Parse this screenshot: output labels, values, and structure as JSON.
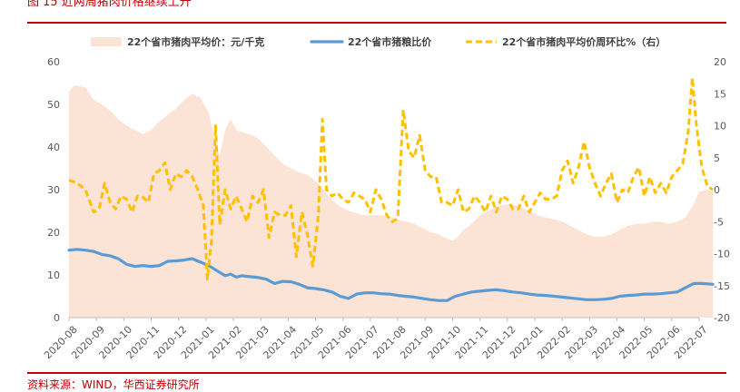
{
  "figure": {
    "title": "图 15   近两周猪肉价格继续上升",
    "source": "资料来源：WIND，华西证券研究所"
  },
  "chart_data": {
    "type": "line",
    "x_start": "2020-08",
    "x_end": "2022-07",
    "x_tick_labels": [
      "2020-08",
      "2020-09",
      "2020-10",
      "2020-11",
      "2020-12",
      "2021-01",
      "2021-02",
      "2021-03",
      "2021-04",
      "2021-05",
      "2021-06",
      "2021-07",
      "2021-08",
      "2021-09",
      "2021-10",
      "2021-11",
      "2021-12",
      "2022-01",
      "2022-02",
      "2022-03",
      "2022-04",
      "2022-05",
      "2022-06",
      "2022-07"
    ],
    "y_left": {
      "min": 0,
      "max": 60,
      "ticks": [
        0,
        10,
        20,
        30,
        40,
        50,
        60
      ]
    },
    "y_right": {
      "min": -20,
      "max": 20,
      "ticks": [
        -20,
        -15,
        -10,
        -5,
        0,
        5,
        10,
        15,
        20
      ]
    },
    "legend_position": "top",
    "grid": false,
    "series": [
      {
        "name": "22个省市猪肉平均价：元/千克",
        "kind": "area",
        "axis": "left",
        "color": "#fbe3d6",
        "points": [
          [
            0,
            53
          ],
          [
            0.2,
            54.5
          ],
          [
            0.6,
            54
          ],
          [
            0.9,
            51
          ],
          [
            1.2,
            50
          ],
          [
            1.5,
            48.5
          ],
          [
            1.8,
            46.5
          ],
          [
            2.1,
            45
          ],
          [
            2.4,
            44
          ],
          [
            2.7,
            43
          ],
          [
            3.0,
            44
          ],
          [
            3.3,
            46
          ],
          [
            3.6,
            47.5
          ],
          [
            3.9,
            49
          ],
          [
            4.2,
            51
          ],
          [
            4.5,
            52.5
          ],
          [
            4.8,
            51.5
          ],
          [
            5.1,
            48
          ],
          [
            5.3,
            42
          ],
          [
            5.5,
            38
          ],
          [
            5.7,
            44
          ],
          [
            5.9,
            46.5
          ],
          [
            6.1,
            44
          ],
          [
            6.3,
            43.5
          ],
          [
            6.6,
            43
          ],
          [
            6.9,
            42
          ],
          [
            7.2,
            40
          ],
          [
            7.5,
            38
          ],
          [
            7.8,
            36
          ],
          [
            8.1,
            35
          ],
          [
            8.4,
            34
          ],
          [
            8.7,
            33.5
          ],
          [
            9.0,
            32
          ],
          [
            9.3,
            30
          ],
          [
            9.6,
            27.5
          ],
          [
            9.9,
            26
          ],
          [
            10.2,
            25
          ],
          [
            10.5,
            24.5
          ],
          [
            10.8,
            24
          ],
          [
            11.1,
            24
          ],
          [
            11.4,
            24
          ],
          [
            11.7,
            23.7
          ],
          [
            12.0,
            23
          ],
          [
            12.3,
            22.5
          ],
          [
            12.6,
            22
          ],
          [
            12.9,
            21
          ],
          [
            13.2,
            20
          ],
          [
            13.5,
            19.5
          ],
          [
            13.8,
            18.5
          ],
          [
            14.0,
            18
          ],
          [
            14.2,
            19
          ],
          [
            14.4,
            20.5
          ],
          [
            14.7,
            22
          ],
          [
            15.0,
            24
          ],
          [
            15.3,
            25
          ],
          [
            15.6,
            26
          ],
          [
            15.9,
            26.5
          ],
          [
            16.2,
            26.5
          ],
          [
            16.5,
            26
          ],
          [
            16.8,
            25
          ],
          [
            17.1,
            24
          ],
          [
            17.4,
            23.5
          ],
          [
            17.7,
            23
          ],
          [
            18.0,
            22.5
          ],
          [
            18.3,
            21.5
          ],
          [
            18.6,
            20.5
          ],
          [
            18.9,
            19.5
          ],
          [
            19.2,
            19
          ],
          [
            19.5,
            19
          ],
          [
            19.8,
            19.5
          ],
          [
            20.1,
            20.5
          ],
          [
            20.4,
            21.5
          ],
          [
            20.7,
            22
          ],
          [
            21.0,
            22
          ],
          [
            21.3,
            22.5
          ],
          [
            21.6,
            22.5
          ],
          [
            21.9,
            22
          ],
          [
            22.2,
            22.5
          ],
          [
            22.5,
            23.5
          ],
          [
            22.8,
            26.5
          ],
          [
            23.0,
            29.5
          ],
          [
            23.3,
            30
          ],
          [
            23.5,
            29.5
          ]
        ]
      },
      {
        "name": "22个省市猪粮比价",
        "kind": "line",
        "axis": "left",
        "color": "#5b9bd5",
        "dash": "solid",
        "points": [
          [
            0,
            15.8
          ],
          [
            0.3,
            16
          ],
          [
            0.6,
            15.8
          ],
          [
            0.9,
            15.5
          ],
          [
            1.2,
            14.8
          ],
          [
            1.5,
            14.5
          ],
          [
            1.8,
            13.8
          ],
          [
            2.1,
            12.5
          ],
          [
            2.4,
            12
          ],
          [
            2.7,
            12.2
          ],
          [
            3.0,
            12
          ],
          [
            3.3,
            12.2
          ],
          [
            3.6,
            13.2
          ],
          [
            3.9,
            13.3
          ],
          [
            4.2,
            13.5
          ],
          [
            4.5,
            13.8
          ],
          [
            4.8,
            13
          ],
          [
            5.1,
            12.2
          ],
          [
            5.4,
            11
          ],
          [
            5.7,
            9.8
          ],
          [
            5.9,
            10.2
          ],
          [
            6.1,
            9.5
          ],
          [
            6.3,
            9.8
          ],
          [
            6.6,
            9.6
          ],
          [
            6.9,
            9.4
          ],
          [
            7.2,
            9
          ],
          [
            7.5,
            8
          ],
          [
            7.8,
            8.5
          ],
          [
            8.1,
            8.4
          ],
          [
            8.4,
            7.8
          ],
          [
            8.7,
            7
          ],
          [
            9.0,
            6.8
          ],
          [
            9.3,
            6.5
          ],
          [
            9.6,
            6
          ],
          [
            9.9,
            5
          ],
          [
            10.2,
            4.5
          ],
          [
            10.5,
            5.5
          ],
          [
            10.8,
            5.8
          ],
          [
            11.1,
            5.8
          ],
          [
            11.4,
            5.6
          ],
          [
            11.7,
            5.5
          ],
          [
            12.0,
            5.2
          ],
          [
            12.3,
            5
          ],
          [
            12.6,
            4.8
          ],
          [
            12.9,
            4.5
          ],
          [
            13.2,
            4.2
          ],
          [
            13.5,
            4
          ],
          [
            13.8,
            4
          ],
          [
            14.1,
            5
          ],
          [
            14.4,
            5.5
          ],
          [
            14.7,
            6
          ],
          [
            15.0,
            6.2
          ],
          [
            15.3,
            6.4
          ],
          [
            15.6,
            6.5
          ],
          [
            15.9,
            6.3
          ],
          [
            16.2,
            6
          ],
          [
            16.5,
            5.8
          ],
          [
            16.8,
            5.5
          ],
          [
            17.1,
            5.3
          ],
          [
            17.4,
            5.2
          ],
          [
            17.7,
            5
          ],
          [
            18.0,
            4.8
          ],
          [
            18.3,
            4.6
          ],
          [
            18.6,
            4.4
          ],
          [
            18.9,
            4.2
          ],
          [
            19.2,
            4.2
          ],
          [
            19.5,
            4.3
          ],
          [
            19.8,
            4.5
          ],
          [
            20.1,
            5
          ],
          [
            20.4,
            5.2
          ],
          [
            20.7,
            5.3
          ],
          [
            21.0,
            5.5
          ],
          [
            21.3,
            5.5
          ],
          [
            21.6,
            5.6
          ],
          [
            21.9,
            5.8
          ],
          [
            22.2,
            6
          ],
          [
            22.5,
            7
          ],
          [
            22.8,
            8
          ],
          [
            23.1,
            8
          ],
          [
            23.5,
            7.8
          ]
        ]
      },
      {
        "name": "22个省市猪肉平均价周环比%（右）",
        "kind": "line",
        "axis": "right",
        "color": "#ffc000",
        "dash": "dashed",
        "points": [
          [
            0,
            1.5
          ],
          [
            0.3,
            1
          ],
          [
            0.6,
            0
          ],
          [
            0.9,
            -3.5
          ],
          [
            1.1,
            -3
          ],
          [
            1.3,
            1
          ],
          [
            1.5,
            -2
          ],
          [
            1.7,
            -3
          ],
          [
            1.9,
            -1
          ],
          [
            2.1,
            -1.5
          ],
          [
            2.3,
            -3.5
          ],
          [
            2.5,
            -1
          ],
          [
            2.7,
            -1.2
          ],
          [
            2.9,
            -2
          ],
          [
            3.1,
            2.5
          ],
          [
            3.3,
            3
          ],
          [
            3.5,
            4.2
          ],
          [
            3.7,
            0
          ],
          [
            3.9,
            2.5
          ],
          [
            4.1,
            2
          ],
          [
            4.3,
            3
          ],
          [
            4.5,
            2
          ],
          [
            4.7,
            0
          ],
          [
            4.9,
            -2.5
          ],
          [
            5.05,
            -14
          ],
          [
            5.2,
            -8
          ],
          [
            5.35,
            10
          ],
          [
            5.5,
            -5.5
          ],
          [
            5.7,
            0
          ],
          [
            5.9,
            -3
          ],
          [
            6.1,
            -1
          ],
          [
            6.3,
            -3
          ],
          [
            6.5,
            -5
          ],
          [
            6.7,
            -1
          ],
          [
            6.9,
            -2
          ],
          [
            7.1,
            0
          ],
          [
            7.3,
            -7.5
          ],
          [
            7.5,
            -3.5
          ],
          [
            7.7,
            -4
          ],
          [
            7.9,
            -4
          ],
          [
            8.1,
            -2.5
          ],
          [
            8.3,
            -10.5
          ],
          [
            8.5,
            -3.5
          ],
          [
            8.7,
            -7
          ],
          [
            8.9,
            -12
          ],
          [
            9.1,
            -4
          ],
          [
            9.25,
            11
          ],
          [
            9.4,
            0
          ],
          [
            9.6,
            -1
          ],
          [
            9.8,
            -0.5
          ],
          [
            10.0,
            -1.5
          ],
          [
            10.2,
            -2
          ],
          [
            10.4,
            -0.5
          ],
          [
            10.6,
            -1
          ],
          [
            10.8,
            -1.5
          ],
          [
            11.0,
            -3.5
          ],
          [
            11.2,
            0
          ],
          [
            11.4,
            -1.5
          ],
          [
            11.6,
            -4
          ],
          [
            11.8,
            -5
          ],
          [
            12.0,
            -4.5
          ],
          [
            12.2,
            12.5
          ],
          [
            12.4,
            6
          ],
          [
            12.6,
            5
          ],
          [
            12.8,
            8.5
          ],
          [
            13.0,
            3
          ],
          [
            13.2,
            2
          ],
          [
            13.4,
            2
          ],
          [
            13.6,
            -2
          ],
          [
            13.8,
            -2
          ],
          [
            14.0,
            -2.5
          ],
          [
            14.2,
            0
          ],
          [
            14.4,
            -3.5
          ],
          [
            14.6,
            -3
          ],
          [
            14.8,
            -1
          ],
          [
            15.0,
            -2
          ],
          [
            15.2,
            -3.5
          ],
          [
            15.4,
            -1
          ],
          [
            15.6,
            -3.5
          ],
          [
            15.8,
            -1
          ],
          [
            16.0,
            -1.5
          ],
          [
            16.2,
            -3
          ],
          [
            16.4,
            -3
          ],
          [
            16.6,
            -1
          ],
          [
            16.8,
            -3.5
          ],
          [
            17.0,
            -2
          ],
          [
            17.2,
            -0.5
          ],
          [
            17.4,
            -1.5
          ],
          [
            17.6,
            -1.5
          ],
          [
            17.8,
            -1
          ],
          [
            18.0,
            3
          ],
          [
            18.2,
            4.5
          ],
          [
            18.4,
            1
          ],
          [
            18.6,
            3.5
          ],
          [
            18.8,
            7.5
          ],
          [
            19.0,
            3.5
          ],
          [
            19.2,
            1
          ],
          [
            19.4,
            -1
          ],
          [
            19.6,
            1
          ],
          [
            19.8,
            2.5
          ],
          [
            20.0,
            -2
          ],
          [
            20.2,
            0
          ],
          [
            20.4,
            -0.5
          ],
          [
            20.6,
            2
          ],
          [
            20.8,
            3.5
          ],
          [
            21.0,
            -1
          ],
          [
            21.2,
            2
          ],
          [
            21.4,
            -0.5
          ],
          [
            21.6,
            1
          ],
          [
            21.8,
            -0.5
          ],
          [
            22.0,
            2
          ],
          [
            22.2,
            3
          ],
          [
            22.4,
            4
          ],
          [
            22.6,
            9
          ],
          [
            22.75,
            17.5
          ],
          [
            22.9,
            10
          ],
          [
            23.1,
            3.5
          ],
          [
            23.3,
            0.5
          ],
          [
            23.5,
            0
          ]
        ]
      }
    ]
  }
}
